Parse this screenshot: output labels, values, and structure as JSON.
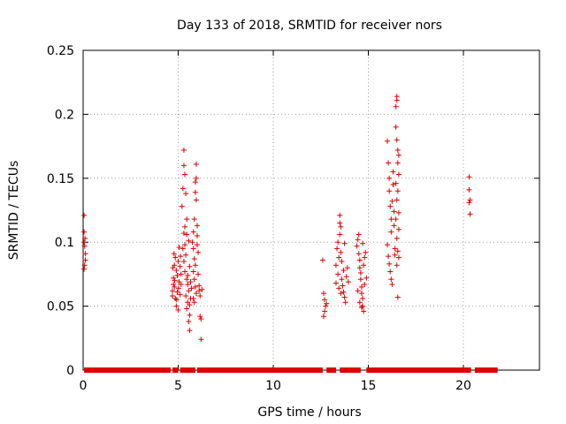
{
  "chart_data": {
    "type": "scatter",
    "title": "Day 133 of 2018, SRMTID for receiver nors",
    "xlabel": "GPS time / hours",
    "ylabel": "SRMTID / TECUs",
    "xlim": [
      0,
      24
    ],
    "ylim": [
      0,
      0.25
    ],
    "xticks": [
      0,
      5,
      10,
      15,
      20
    ],
    "xtick_labels": [
      "0",
      "5",
      "10",
      "15",
      "20"
    ],
    "yticks": [
      0,
      0.05,
      0.1,
      0.15,
      0.2,
      0.25
    ],
    "ytick_labels": [
      "0",
      "0.05",
      "0.1",
      "0.15",
      "0.2",
      "0.25"
    ],
    "grid": true,
    "marker": "plus",
    "color": "#dd0000",
    "zero_band": {
      "from_x": 0.05,
      "to_x": 21.8,
      "y": 0,
      "gaps": [
        [
          4.6,
          4.7
        ],
        [
          5.0,
          5.1
        ],
        [
          5.9,
          6.0
        ],
        [
          12.6,
          12.8
        ],
        [
          13.3,
          13.5
        ],
        [
          14.6,
          14.9
        ],
        [
          20.4,
          20.6
        ]
      ]
    },
    "series": [
      {
        "name": "SRMTID",
        "points": [
          [
            0.05,
            0.121
          ],
          [
            0.05,
            0.108
          ],
          [
            0.05,
            0.1
          ],
          [
            0.1,
            0.103
          ],
          [
            0.08,
            0.097
          ],
          [
            0.12,
            0.091
          ],
          [
            0.12,
            0.086
          ],
          [
            0.08,
            0.082
          ],
          [
            0.05,
            0.079
          ],
          [
            4.7,
            0.062
          ],
          [
            4.7,
            0.058
          ],
          [
            4.75,
            0.072
          ],
          [
            4.75,
            0.067
          ],
          [
            4.8,
            0.082
          ],
          [
            4.8,
            0.065
          ],
          [
            4.85,
            0.056
          ],
          [
            4.85,
            0.088
          ],
          [
            4.9,
            0.078
          ],
          [
            4.9,
            0.05
          ],
          [
            4.95,
            0.061
          ],
          [
            4.95,
            0.074
          ],
          [
            5.0,
            0.085
          ],
          [
            5.0,
            0.047
          ],
          [
            5.05,
            0.069
          ],
          [
            5.05,
            0.096
          ],
          [
            5.1,
            0.081
          ],
          [
            5.1,
            0.059
          ],
          [
            5.15,
            0.067
          ],
          [
            5.15,
            0.075
          ],
          [
            4.72,
            0.08
          ],
          [
            4.78,
            0.091
          ],
          [
            4.82,
            0.07
          ],
          [
            4.92,
            0.055
          ],
          [
            5.02,
            0.064
          ],
          [
            5.12,
            0.089
          ],
          [
            5.2,
            0.128
          ],
          [
            5.25,
            0.142
          ],
          [
            5.3,
            0.172
          ],
          [
            5.3,
            0.16
          ],
          [
            5.35,
            0.153
          ],
          [
            5.4,
            0.138
          ],
          [
            5.45,
            0.118
          ],
          [
            5.3,
            0.107
          ],
          [
            5.35,
            0.098
          ],
          [
            5.4,
            0.09
          ],
          [
            5.3,
            0.085
          ],
          [
            5.35,
            0.077
          ],
          [
            5.45,
            0.071
          ],
          [
            5.5,
            0.067
          ],
          [
            5.55,
            0.062
          ],
          [
            5.4,
            0.058
          ],
          [
            5.5,
            0.053
          ],
          [
            5.45,
            0.048
          ],
          [
            5.6,
            0.043
          ],
          [
            5.55,
            0.038
          ],
          [
            5.6,
            0.031
          ],
          [
            5.5,
            0.074
          ],
          [
            5.6,
            0.081
          ],
          [
            5.65,
            0.069
          ],
          [
            5.7,
            0.064
          ],
          [
            5.25,
            0.095
          ],
          [
            5.35,
            0.112
          ],
          [
            5.45,
            0.106
          ],
          [
            5.55,
            0.101
          ],
          [
            5.6,
            0.051
          ],
          [
            5.65,
            0.056
          ],
          [
            5.8,
            0.095
          ],
          [
            5.8,
            0.108
          ],
          [
            5.85,
            0.118
          ],
          [
            5.85,
            0.087
          ],
          [
            5.9,
            0.082
          ],
          [
            5.9,
            0.147
          ],
          [
            5.9,
            0.139
          ],
          [
            5.95,
            0.161
          ],
          [
            5.95,
            0.15
          ],
          [
            5.95,
            0.133
          ],
          [
            5.8,
            0.077
          ],
          [
            5.85,
            0.071
          ],
          [
            5.9,
            0.065
          ],
          [
            5.95,
            0.06
          ],
          [
            6.0,
            0.113
          ],
          [
            6.0,
            0.105
          ],
          [
            6.0,
            0.098
          ],
          [
            6.05,
            0.092
          ],
          [
            6.05,
            0.075
          ],
          [
            6.1,
            0.066
          ],
          [
            6.1,
            0.062
          ],
          [
            6.15,
            0.058
          ],
          [
            6.15,
            0.042
          ],
          [
            6.2,
            0.024
          ],
          [
            6.2,
            0.04
          ],
          [
            6.25,
            0.063
          ],
          [
            5.75,
            0.1
          ],
          [
            5.8,
            0.056
          ],
          [
            5.85,
            0.053
          ],
          [
            12.6,
            0.086
          ],
          [
            12.65,
            0.06
          ],
          [
            12.7,
            0.055
          ],
          [
            12.75,
            0.05
          ],
          [
            12.7,
            0.046
          ],
          [
            12.65,
            0.042
          ],
          [
            12.8,
            0.052
          ],
          [
            13.3,
            0.068
          ],
          [
            13.3,
            0.082
          ],
          [
            13.35,
            0.095
          ],
          [
            13.4,
            0.1
          ],
          [
            13.4,
            0.075
          ],
          [
            13.45,
            0.088
          ],
          [
            13.5,
            0.121
          ],
          [
            13.5,
            0.115
          ],
          [
            13.55,
            0.112
          ],
          [
            13.5,
            0.106
          ],
          [
            13.55,
            0.092
          ],
          [
            13.6,
            0.085
          ],
          [
            13.6,
            0.071
          ],
          [
            13.65,
            0.066
          ],
          [
            13.7,
            0.061
          ],
          [
            13.7,
            0.078
          ],
          [
            13.75,
            0.099
          ],
          [
            13.75,
            0.057
          ],
          [
            13.8,
            0.053
          ],
          [
            13.85,
            0.073
          ],
          [
            13.9,
            0.08
          ],
          [
            13.95,
            0.069
          ],
          [
            13.45,
            0.064
          ],
          [
            13.55,
            0.06
          ],
          [
            14.4,
            0.097
          ],
          [
            14.45,
            0.102
          ],
          [
            14.5,
            0.106
          ],
          [
            14.5,
            0.091
          ],
          [
            14.55,
            0.086
          ],
          [
            14.55,
            0.08
          ],
          [
            14.6,
            0.076
          ],
          [
            14.6,
            0.071
          ],
          [
            14.65,
            0.065
          ],
          [
            14.65,
            0.06
          ],
          [
            14.7,
            0.056
          ],
          [
            14.7,
            0.05
          ],
          [
            14.75,
            0.046
          ],
          [
            14.75,
            0.082
          ],
          [
            14.8,
            0.088
          ],
          [
            14.85,
            0.092
          ],
          [
            14.9,
            0.072
          ],
          [
            14.45,
            0.062
          ],
          [
            14.55,
            0.053
          ],
          [
            14.65,
            0.049
          ],
          [
            14.7,
            0.099
          ],
          [
            14.8,
            0.067
          ],
          [
            16.0,
            0.179
          ],
          [
            16.05,
            0.162
          ],
          [
            16.1,
            0.15
          ],
          [
            16.1,
            0.14
          ],
          [
            16.15,
            0.128
          ],
          [
            16.2,
            0.118
          ],
          [
            16.2,
            0.108
          ],
          [
            16.0,
            0.098
          ],
          [
            16.05,
            0.089
          ],
          [
            16.1,
            0.083
          ],
          [
            16.15,
            0.077
          ],
          [
            16.2,
            0.071
          ],
          [
            16.25,
            0.067
          ],
          [
            16.25,
            0.132
          ],
          [
            16.3,
            0.155
          ],
          [
            16.3,
            0.145
          ],
          [
            16.35,
            0.124
          ],
          [
            16.35,
            0.113
          ],
          [
            16.4,
            0.095
          ],
          [
            16.4,
            0.09
          ],
          [
            16.45,
            0.206
          ],
          [
            16.5,
            0.214
          ],
          [
            16.5,
            0.211
          ],
          [
            16.45,
            0.19
          ],
          [
            16.5,
            0.18
          ],
          [
            16.55,
            0.172
          ],
          [
            16.55,
            0.162
          ],
          [
            16.6,
            0.153
          ],
          [
            16.55,
            0.14
          ],
          [
            16.6,
            0.123
          ],
          [
            16.5,
            0.133
          ],
          [
            16.45,
            0.118
          ],
          [
            16.6,
            0.11
          ],
          [
            16.5,
            0.103
          ],
          [
            16.55,
            0.093
          ],
          [
            16.6,
            0.088
          ],
          [
            16.5,
            0.082
          ],
          [
            16.55,
            0.057
          ],
          [
            16.45,
            0.146
          ],
          [
            16.6,
            0.168
          ],
          [
            20.3,
            0.151
          ],
          [
            20.3,
            0.141
          ],
          [
            20.35,
            0.133
          ],
          [
            20.3,
            0.131
          ],
          [
            20.35,
            0.122
          ]
        ]
      }
    ]
  }
}
